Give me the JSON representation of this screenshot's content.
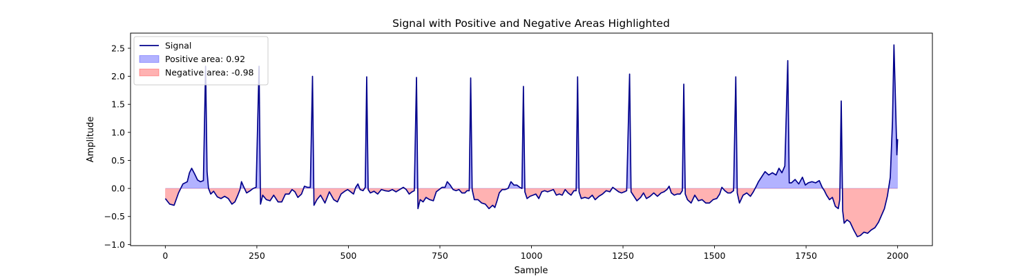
{
  "chart_data": {
    "type": "area",
    "title": "Signal with Positive and Negative Areas Highlighted",
    "xlabel": "Sample",
    "ylabel": "Amplitude",
    "xlim": [
      -95,
      2095
    ],
    "ylim": [
      -1.02,
      2.77
    ],
    "xticks": [
      0,
      250,
      500,
      750,
      1000,
      1250,
      1500,
      1750,
      2000
    ],
    "yticks": [
      -1.0,
      -0.5,
      0.0,
      0.5,
      1.0,
      1.5,
      2.0,
      2.5
    ],
    "ytick_labels": [
      "−1.0",
      "−0.5",
      "0.0",
      "0.5",
      "1.0",
      "1.5",
      "2.0",
      "2.5"
    ],
    "grid": false,
    "legend_position": "top-left",
    "colors": {
      "signal": "#00008b",
      "positive_fill": "#0000ff",
      "negative_fill": "#ff0000"
    },
    "series": [
      {
        "name": "Signal",
        "color": "#00008b",
        "points": [
          [
            0,
            -0.18
          ],
          [
            12,
            -0.28
          ],
          [
            24,
            -0.3
          ],
          [
            36,
            -0.08
          ],
          [
            48,
            0.08
          ],
          [
            60,
            0.12
          ],
          [
            66,
            0.28
          ],
          [
            72,
            0.36
          ],
          [
            80,
            0.26
          ],
          [
            88,
            0.15
          ],
          [
            96,
            0.12
          ],
          [
            104,
            0.14
          ],
          [
            110,
            2.18
          ],
          [
            114,
            0.3
          ],
          [
            118,
            0.0
          ],
          [
            124,
            -0.1
          ],
          [
            132,
            -0.05
          ],
          [
            142,
            -0.15
          ],
          [
            152,
            -0.18
          ],
          [
            162,
            -0.14
          ],
          [
            172,
            -0.18
          ],
          [
            182,
            -0.28
          ],
          [
            190,
            -0.24
          ],
          [
            198,
            -0.12
          ],
          [
            204,
            -0.02
          ],
          [
            208,
            0.12
          ],
          [
            214,
            0.03
          ],
          [
            222,
            -0.08
          ],
          [
            232,
            -0.04
          ],
          [
            240,
            0.0
          ],
          [
            248,
            0.02
          ],
          [
            256,
            2.18
          ],
          [
            260,
            -0.28
          ],
          [
            266,
            -0.12
          ],
          [
            276,
            -0.2
          ],
          [
            286,
            -0.22
          ],
          [
            296,
            -0.12
          ],
          [
            308,
            -0.24
          ],
          [
            318,
            -0.24
          ],
          [
            328,
            -0.1
          ],
          [
            338,
            -0.1
          ],
          [
            346,
            -0.02
          ],
          [
            354,
            -0.06
          ],
          [
            362,
            -0.16
          ],
          [
            372,
            -0.1
          ],
          [
            380,
            0.04
          ],
          [
            388,
            0.02
          ],
          [
            396,
            0.02
          ],
          [
            402,
            2.0
          ],
          [
            406,
            -0.3
          ],
          [
            414,
            -0.2
          ],
          [
            424,
            -0.12
          ],
          [
            436,
            -0.26
          ],
          [
            448,
            -0.06
          ],
          [
            460,
            -0.2
          ],
          [
            470,
            -0.24
          ],
          [
            480,
            -0.1
          ],
          [
            490,
            -0.05
          ],
          [
            498,
            -0.02
          ],
          [
            506,
            -0.06
          ],
          [
            514,
            -0.1
          ],
          [
            520,
            0.02
          ],
          [
            526,
            0.08
          ],
          [
            532,
            -0.02
          ],
          [
            540,
            -0.04
          ],
          [
            546,
            0.02
          ],
          [
            550,
            1.99
          ],
          [
            554,
            -0.02
          ],
          [
            560,
            -0.08
          ],
          [
            570,
            -0.05
          ],
          [
            580,
            -0.1
          ],
          [
            590,
            -0.02
          ],
          [
            600,
            -0.04
          ],
          [
            610,
            -0.05
          ],
          [
            620,
            -0.02
          ],
          [
            630,
            -0.06
          ],
          [
            640,
            -0.02
          ],
          [
            650,
            0.02
          ],
          [
            658,
            -0.02
          ],
          [
            666,
            -0.1
          ],
          [
            674,
            -0.06
          ],
          [
            680,
            -0.04
          ],
          [
            686,
            1.98
          ],
          [
            690,
            -0.36
          ],
          [
            696,
            -0.2
          ],
          [
            704,
            -0.24
          ],
          [
            712,
            -0.16
          ],
          [
            722,
            -0.2
          ],
          [
            732,
            -0.22
          ],
          [
            740,
            -0.06
          ],
          [
            748,
            -0.02
          ],
          [
            756,
            0.02
          ],
          [
            764,
            0.02
          ],
          [
            770,
            0.12
          ],
          [
            778,
            0.06
          ],
          [
            786,
            -0.02
          ],
          [
            794,
            -0.04
          ],
          [
            802,
            -0.02
          ],
          [
            810,
            -0.08
          ],
          [
            818,
            -0.08
          ],
          [
            824,
            -0.04
          ],
          [
            830,
            -0.04
          ],
          [
            834,
            1.97
          ],
          [
            838,
            -0.02
          ],
          [
            844,
            -0.2
          ],
          [
            854,
            -0.2
          ],
          [
            864,
            -0.26
          ],
          [
            874,
            -0.28
          ],
          [
            884,
            -0.36
          ],
          [
            894,
            -0.3
          ],
          [
            900,
            -0.34
          ],
          [
            906,
            -0.22
          ],
          [
            912,
            -0.08
          ],
          [
            920,
            -0.02
          ],
          [
            928,
            -0.02
          ],
          [
            936,
            0.0
          ],
          [
            944,
            0.12
          ],
          [
            952,
            0.06
          ],
          [
            960,
            0.06
          ],
          [
            968,
            0.02
          ],
          [
            974,
            0.0
          ],
          [
            978,
            1.82
          ],
          [
            982,
            -0.06
          ],
          [
            988,
            -0.18
          ],
          [
            996,
            -0.14
          ],
          [
            1004,
            -0.12
          ],
          [
            1012,
            -0.1
          ],
          [
            1020,
            -0.18
          ],
          [
            1028,
            -0.06
          ],
          [
            1036,
            -0.04
          ],
          [
            1044,
            -0.06
          ],
          [
            1052,
            -0.04
          ],
          [
            1060,
            -0.02
          ],
          [
            1068,
            -0.12
          ],
          [
            1076,
            -0.1
          ],
          [
            1084,
            -0.12
          ],
          [
            1092,
            -0.02
          ],
          [
            1100,
            -0.08
          ],
          [
            1108,
            -0.12
          ],
          [
            1116,
            -0.04
          ],
          [
            1122,
            -0.04
          ],
          [
            1126,
            1.99
          ],
          [
            1130,
            -0.06
          ],
          [
            1136,
            -0.18
          ],
          [
            1146,
            -0.16
          ],
          [
            1156,
            -0.18
          ],
          [
            1166,
            -0.12
          ],
          [
            1174,
            -0.2
          ],
          [
            1184,
            -0.14
          ],
          [
            1194,
            -0.1
          ],
          [
            1204,
            -0.04
          ],
          [
            1214,
            -0.06
          ],
          [
            1222,
            0.02
          ],
          [
            1230,
            -0.02
          ],
          [
            1238,
            -0.06
          ],
          [
            1246,
            -0.08
          ],
          [
            1254,
            -0.06
          ],
          [
            1260,
            -0.04
          ],
          [
            1268,
            2.04
          ],
          [
            1272,
            -0.06
          ],
          [
            1278,
            -0.12
          ],
          [
            1288,
            -0.22
          ],
          [
            1298,
            -0.16
          ],
          [
            1306,
            -0.08
          ],
          [
            1314,
            -0.18
          ],
          [
            1324,
            -0.14
          ],
          [
            1334,
            -0.08
          ],
          [
            1344,
            -0.14
          ],
          [
            1354,
            -0.08
          ],
          [
            1362,
            -0.06
          ],
          [
            1370,
            -0.02
          ],
          [
            1376,
            0.04
          ],
          [
            1382,
            -0.08
          ],
          [
            1390,
            -0.12
          ],
          [
            1398,
            -0.1
          ],
          [
            1406,
            -0.1
          ],
          [
            1412,
            -0.04
          ],
          [
            1416,
            1.86
          ],
          [
            1420,
            -0.1
          ],
          [
            1426,
            -0.2
          ],
          [
            1436,
            -0.26
          ],
          [
            1446,
            -0.12
          ],
          [
            1456,
            -0.22
          ],
          [
            1466,
            -0.2
          ],
          [
            1476,
            -0.26
          ],
          [
            1486,
            -0.26
          ],
          [
            1496,
            -0.2
          ],
          [
            1506,
            -0.18
          ],
          [
            1514,
            -0.1
          ],
          [
            1520,
            0.02
          ],
          [
            1528,
            -0.04
          ],
          [
            1536,
            -0.08
          ],
          [
            1544,
            -0.08
          ],
          [
            1552,
            -0.04
          ],
          [
            1558,
            1.99
          ],
          [
            1562,
            -0.08
          ],
          [
            1568,
            -0.26
          ],
          [
            1578,
            -0.12
          ],
          [
            1588,
            -0.08
          ],
          [
            1598,
            -0.14
          ],
          [
            1606,
            -0.06
          ],
          [
            1614,
            0.04
          ],
          [
            1620,
            0.12
          ],
          [
            1628,
            0.2
          ],
          [
            1638,
            0.3
          ],
          [
            1648,
            0.24
          ],
          [
            1658,
            0.28
          ],
          [
            1668,
            0.24
          ],
          [
            1676,
            0.36
          ],
          [
            1684,
            0.28
          ],
          [
            1692,
            0.4
          ],
          [
            1700,
            2.28
          ],
          [
            1704,
            0.1
          ],
          [
            1710,
            0.1
          ],
          [
            1720,
            0.16
          ],
          [
            1730,
            0.08
          ],
          [
            1740,
            0.2
          ],
          [
            1748,
            0.06
          ],
          [
            1756,
            0.1
          ],
          [
            1766,
            0.12
          ],
          [
            1776,
            0.1
          ],
          [
            1786,
            0.14
          ],
          [
            1794,
            0.02
          ],
          [
            1800,
            -0.04
          ],
          [
            1806,
            -0.12
          ],
          [
            1814,
            -0.2
          ],
          [
            1822,
            -0.16
          ],
          [
            1830,
            -0.32
          ],
          [
            1838,
            -0.36
          ],
          [
            1842,
            -0.2
          ],
          [
            1846,
            1.56
          ],
          [
            1850,
            -0.4
          ],
          [
            1854,
            -0.62
          ],
          [
            1862,
            -0.56
          ],
          [
            1870,
            -0.6
          ],
          [
            1880,
            -0.74
          ],
          [
            1890,
            -0.86
          ],
          [
            1898,
            -0.84
          ],
          [
            1908,
            -0.78
          ],
          [
            1918,
            -0.8
          ],
          [
            1928,
            -0.74
          ],
          [
            1938,
            -0.7
          ],
          [
            1948,
            -0.6
          ],
          [
            1956,
            -0.48
          ],
          [
            1964,
            -0.36
          ],
          [
            1972,
            -0.14
          ],
          [
            1980,
            0.2
          ],
          [
            1986,
            1.2
          ],
          [
            1990,
            2.56
          ],
          [
            1994,
            1.6
          ],
          [
            1998,
            0.6
          ],
          [
            2000,
            0.88
          ]
        ]
      }
    ],
    "legend": [
      {
        "label": "Signal",
        "kind": "line",
        "color": "#00008b"
      },
      {
        "label": "Positive area: 0.92",
        "kind": "fill",
        "color": "#0000ff"
      },
      {
        "label": "Negative area: -0.98",
        "kind": "fill",
        "color": "#ff0000"
      }
    ]
  }
}
